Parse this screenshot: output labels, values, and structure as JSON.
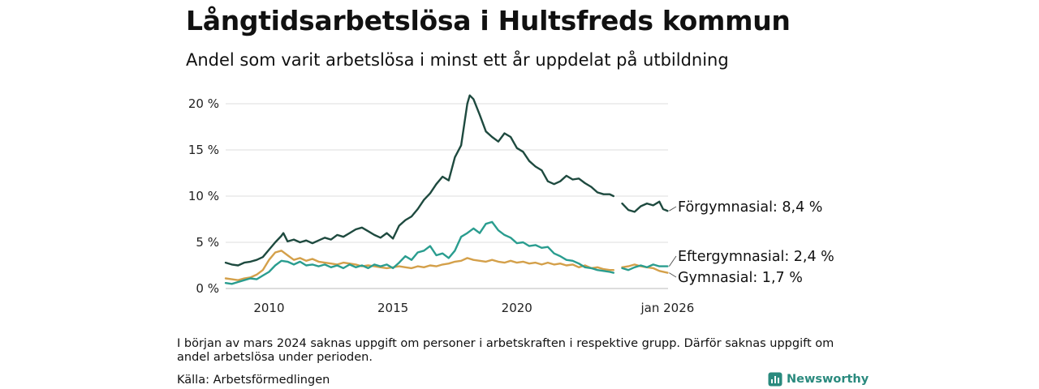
{
  "title": "Långtidsarbetslösa i Hultsfreds kommun",
  "subtitle": "Andel som varit arbetslösa i minst ett år uppdelat på utbildning",
  "note": "I början av mars 2024 saknas uppgift om personer i arbetskraften i respektive grupp. Därför saknas uppgift om andel arbetslösa under perioden.",
  "source": "Källa: Arbetsförmedlingen",
  "brand": "Newsworthy",
  "chart_data": {
    "type": "line",
    "title": "Långtidsarbetslösa i Hultsfreds kommun",
    "xlabel": "",
    "ylabel": "",
    "xlim": [
      2008.25,
      2026.1
    ],
    "ylim": [
      0,
      21
    ],
    "grid": true,
    "x_ticks": [
      2010,
      2015,
      2020,
      2026.08
    ],
    "x_tick_labels": [
      "2010",
      "2015",
      "2020",
      "jan 2026"
    ],
    "y_ticks": [
      0,
      5,
      10,
      15,
      20
    ],
    "y_tick_labels": [
      "0 %",
      "5 %",
      "10 %",
      "15 %",
      "20 %"
    ],
    "missing_period": [
      2023.9,
      2024.25
    ],
    "series": [
      {
        "name": "Förgymnasial",
        "end_label": "Förgymnasial: 8,4 %",
        "color": "#1e4a3f",
        "points": [
          [
            2008.25,
            2.8
          ],
          [
            2008.5,
            2.6
          ],
          [
            2008.75,
            2.5
          ],
          [
            2009.0,
            2.8
          ],
          [
            2009.25,
            2.9
          ],
          [
            2009.5,
            3.1
          ],
          [
            2009.75,
            3.4
          ],
          [
            2010.0,
            4.2
          ],
          [
            2010.25,
            5.0
          ],
          [
            2010.5,
            5.7
          ],
          [
            2010.58,
            6.0
          ],
          [
            2010.75,
            5.1
          ],
          [
            2011.0,
            5.3
          ],
          [
            2011.25,
            5.0
          ],
          [
            2011.5,
            5.2
          ],
          [
            2011.75,
            4.9
          ],
          [
            2012.0,
            5.2
          ],
          [
            2012.25,
            5.5
          ],
          [
            2012.5,
            5.3
          ],
          [
            2012.75,
            5.8
          ],
          [
            2013.0,
            5.6
          ],
          [
            2013.25,
            6.0
          ],
          [
            2013.5,
            6.4
          ],
          [
            2013.75,
            6.6
          ],
          [
            2014.0,
            6.2
          ],
          [
            2014.25,
            5.8
          ],
          [
            2014.5,
            5.5
          ],
          [
            2014.75,
            6.0
          ],
          [
            2015.0,
            5.4
          ],
          [
            2015.25,
            6.8
          ],
          [
            2015.5,
            7.4
          ],
          [
            2015.75,
            7.8
          ],
          [
            2016.0,
            8.6
          ],
          [
            2016.25,
            9.6
          ],
          [
            2016.5,
            10.3
          ],
          [
            2016.75,
            11.3
          ],
          [
            2017.0,
            12.1
          ],
          [
            2017.25,
            11.7
          ],
          [
            2017.5,
            14.2
          ],
          [
            2017.75,
            15.5
          ],
          [
            2018.0,
            20.0
          ],
          [
            2018.1,
            20.9
          ],
          [
            2018.25,
            20.5
          ],
          [
            2018.5,
            18.8
          ],
          [
            2018.75,
            17.0
          ],
          [
            2019.0,
            16.4
          ],
          [
            2019.25,
            15.9
          ],
          [
            2019.5,
            16.8
          ],
          [
            2019.75,
            16.4
          ],
          [
            2020.0,
            15.2
          ],
          [
            2020.25,
            14.8
          ],
          [
            2020.5,
            13.8
          ],
          [
            2020.75,
            13.2
          ],
          [
            2021.0,
            12.8
          ],
          [
            2021.25,
            11.6
          ],
          [
            2021.5,
            11.3
          ],
          [
            2021.75,
            11.6
          ],
          [
            2022.0,
            12.2
          ],
          [
            2022.25,
            11.8
          ],
          [
            2022.5,
            11.9
          ],
          [
            2022.75,
            11.4
          ],
          [
            2023.0,
            11.0
          ],
          [
            2023.25,
            10.4
          ],
          [
            2023.5,
            10.2
          ],
          [
            2023.75,
            10.2
          ],
          [
            2023.9,
            10.0
          ],
          [
            null,
            null
          ],
          [
            2024.25,
            9.2
          ],
          [
            2024.5,
            8.5
          ],
          [
            2024.75,
            8.3
          ],
          [
            2025.0,
            8.9
          ],
          [
            2025.25,
            9.2
          ],
          [
            2025.5,
            9.0
          ],
          [
            2025.75,
            9.4
          ],
          [
            2025.9,
            8.6
          ],
          [
            2026.08,
            8.4
          ]
        ]
      },
      {
        "name": "Eftergymnasial",
        "end_label": "Eftergymnasial: 2,4 %",
        "color": "#2a9d8f",
        "points": [
          [
            2008.25,
            0.6
          ],
          [
            2008.5,
            0.5
          ],
          [
            2008.75,
            0.7
          ],
          [
            2009.0,
            0.9
          ],
          [
            2009.25,
            1.1
          ],
          [
            2009.5,
            1.0
          ],
          [
            2009.75,
            1.4
          ],
          [
            2010.0,
            1.8
          ],
          [
            2010.25,
            2.5
          ],
          [
            2010.5,
            3.0
          ],
          [
            2010.75,
            2.9
          ],
          [
            2011.0,
            2.6
          ],
          [
            2011.25,
            2.9
          ],
          [
            2011.5,
            2.5
          ],
          [
            2011.75,
            2.6
          ],
          [
            2012.0,
            2.4
          ],
          [
            2012.25,
            2.6
          ],
          [
            2012.5,
            2.3
          ],
          [
            2012.75,
            2.5
          ],
          [
            2013.0,
            2.2
          ],
          [
            2013.25,
            2.6
          ],
          [
            2013.5,
            2.3
          ],
          [
            2013.75,
            2.5
          ],
          [
            2014.0,
            2.2
          ],
          [
            2014.25,
            2.6
          ],
          [
            2014.5,
            2.4
          ],
          [
            2014.75,
            2.6
          ],
          [
            2015.0,
            2.2
          ],
          [
            2015.25,
            2.8
          ],
          [
            2015.5,
            3.5
          ],
          [
            2015.75,
            3.1
          ],
          [
            2016.0,
            3.9
          ],
          [
            2016.25,
            4.1
          ],
          [
            2016.5,
            4.6
          ],
          [
            2016.75,
            3.6
          ],
          [
            2017.0,
            3.8
          ],
          [
            2017.25,
            3.3
          ],
          [
            2017.5,
            4.1
          ],
          [
            2017.75,
            5.6
          ],
          [
            2018.0,
            6.0
          ],
          [
            2018.25,
            6.5
          ],
          [
            2018.5,
            6.0
          ],
          [
            2018.75,
            7.0
          ],
          [
            2019.0,
            7.2
          ],
          [
            2019.25,
            6.3
          ],
          [
            2019.5,
            5.8
          ],
          [
            2019.75,
            5.5
          ],
          [
            2020.0,
            4.9
          ],
          [
            2020.25,
            5.0
          ],
          [
            2020.5,
            4.6
          ],
          [
            2020.75,
            4.7
          ],
          [
            2021.0,
            4.4
          ],
          [
            2021.25,
            4.5
          ],
          [
            2021.5,
            3.8
          ],
          [
            2021.75,
            3.5
          ],
          [
            2022.0,
            3.1
          ],
          [
            2022.25,
            3.0
          ],
          [
            2022.5,
            2.7
          ],
          [
            2022.75,
            2.3
          ],
          [
            2023.0,
            2.2
          ],
          [
            2023.25,
            2.0
          ],
          [
            2023.5,
            1.9
          ],
          [
            2023.75,
            1.8
          ],
          [
            2023.9,
            1.7
          ],
          [
            null,
            null
          ],
          [
            2024.25,
            2.2
          ],
          [
            2024.5,
            2.0
          ],
          [
            2024.75,
            2.3
          ],
          [
            2025.0,
            2.5
          ],
          [
            2025.25,
            2.3
          ],
          [
            2025.5,
            2.6
          ],
          [
            2025.75,
            2.4
          ],
          [
            2026.08,
            2.4
          ]
        ]
      },
      {
        "name": "Gymnasial",
        "end_label": "Gymnasial: 1,7 %",
        "color": "#d4a04a",
        "points": [
          [
            2008.25,
            1.1
          ],
          [
            2008.5,
            1.0
          ],
          [
            2008.75,
            0.9
          ],
          [
            2009.0,
            1.1
          ],
          [
            2009.25,
            1.2
          ],
          [
            2009.5,
            1.5
          ],
          [
            2009.75,
            2.0
          ],
          [
            2010.0,
            3.1
          ],
          [
            2010.25,
            3.9
          ],
          [
            2010.5,
            4.1
          ],
          [
            2010.75,
            3.6
          ],
          [
            2011.0,
            3.1
          ],
          [
            2011.25,
            3.3
          ],
          [
            2011.5,
            3.0
          ],
          [
            2011.75,
            3.2
          ],
          [
            2012.0,
            2.9
          ],
          [
            2012.25,
            2.8
          ],
          [
            2012.5,
            2.7
          ],
          [
            2012.75,
            2.6
          ],
          [
            2013.0,
            2.8
          ],
          [
            2013.25,
            2.7
          ],
          [
            2013.5,
            2.6
          ],
          [
            2013.75,
            2.4
          ],
          [
            2014.0,
            2.5
          ],
          [
            2014.25,
            2.4
          ],
          [
            2014.5,
            2.3
          ],
          [
            2014.75,
            2.2
          ],
          [
            2015.0,
            2.3
          ],
          [
            2015.25,
            2.4
          ],
          [
            2015.5,
            2.3
          ],
          [
            2015.75,
            2.2
          ],
          [
            2016.0,
            2.4
          ],
          [
            2016.25,
            2.3
          ],
          [
            2016.5,
            2.5
          ],
          [
            2016.75,
            2.4
          ],
          [
            2017.0,
            2.6
          ],
          [
            2017.25,
            2.7
          ],
          [
            2017.5,
            2.9
          ],
          [
            2017.75,
            3.0
          ],
          [
            2018.0,
            3.3
          ],
          [
            2018.25,
            3.1
          ],
          [
            2018.5,
            3.0
          ],
          [
            2018.75,
            2.9
          ],
          [
            2019.0,
            3.1
          ],
          [
            2019.25,
            2.9
          ],
          [
            2019.5,
            2.8
          ],
          [
            2019.75,
            3.0
          ],
          [
            2020.0,
            2.8
          ],
          [
            2020.25,
            2.9
          ],
          [
            2020.5,
            2.7
          ],
          [
            2020.75,
            2.8
          ],
          [
            2021.0,
            2.6
          ],
          [
            2021.25,
            2.8
          ],
          [
            2021.5,
            2.6
          ],
          [
            2021.75,
            2.7
          ],
          [
            2022.0,
            2.5
          ],
          [
            2022.25,
            2.6
          ],
          [
            2022.5,
            2.3
          ],
          [
            2022.75,
            2.5
          ],
          [
            2023.0,
            2.2
          ],
          [
            2023.25,
            2.3
          ],
          [
            2023.5,
            2.1
          ],
          [
            2023.75,
            2.0
          ],
          [
            2023.9,
            2.0
          ],
          [
            null,
            null
          ],
          [
            2024.25,
            2.3
          ],
          [
            2024.5,
            2.4
          ],
          [
            2024.75,
            2.6
          ],
          [
            2025.0,
            2.4
          ],
          [
            2025.25,
            2.3
          ],
          [
            2025.5,
            2.2
          ],
          [
            2025.75,
            1.9
          ],
          [
            2026.08,
            1.7
          ]
        ]
      }
    ]
  }
}
